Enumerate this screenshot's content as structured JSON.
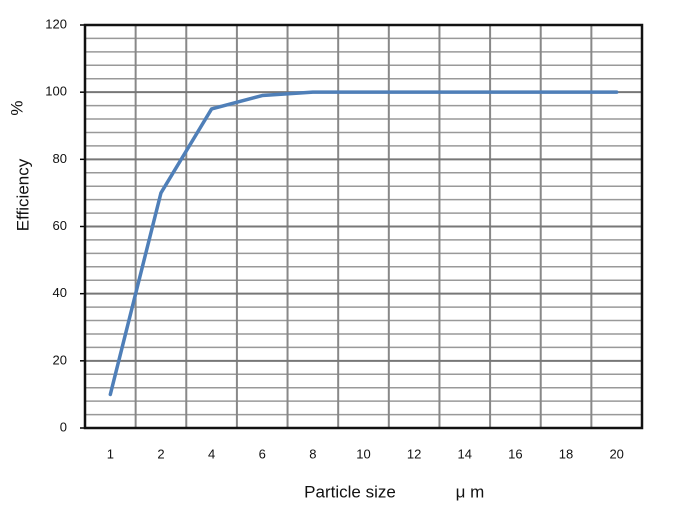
{
  "chart_data": {
    "type": "line",
    "x_label": "Particle size",
    "x_unit": "μ m",
    "y_label": "Efficiency",
    "y_unit": "%",
    "categories": [
      "1",
      "2",
      "4",
      "6",
      "8",
      "10",
      "12",
      "14",
      "16",
      "18",
      "20"
    ],
    "series": [
      {
        "name": "Efficiency",
        "color": "#4f7fb8",
        "values": [
          10,
          70,
          95,
          99,
          100,
          100,
          100,
          100,
          100,
          100,
          100
        ]
      }
    ],
    "ylim": [
      0,
      120
    ],
    "yticks": [
      0,
      20,
      40,
      60,
      80,
      100,
      120
    ],
    "grid": true,
    "minor_grid_divisions": 5
  }
}
